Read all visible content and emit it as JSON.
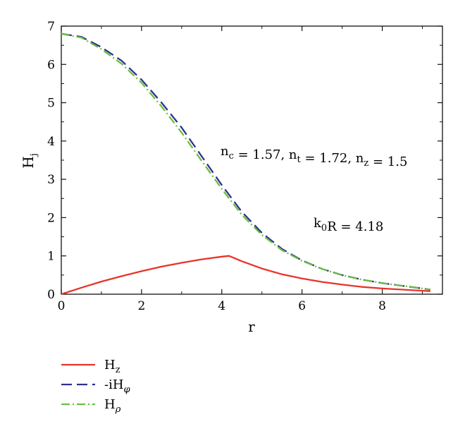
{
  "chart_data": {
    "type": "line",
    "title": "",
    "xlabel": "r",
    "ylabel": {
      "main": "H",
      "sub": "j"
    },
    "xlim": [
      0,
      9.5
    ],
    "ylim": [
      0,
      7
    ],
    "xticks": [
      0,
      2,
      4,
      6,
      8
    ],
    "yticks": [
      0,
      1,
      2,
      3,
      4,
      5,
      6,
      7
    ],
    "grid": false,
    "legend_position": "below-left",
    "annotations": [
      {
        "name": "indices",
        "parts": [
          {
            "text": "n",
            "sub": "c"
          },
          {
            "text": " = 1.57, "
          },
          {
            "text": "n",
            "sub": "t"
          },
          {
            "text": " = 1.72, "
          },
          {
            "text": "n",
            "sub": "z"
          },
          {
            "text": " = 1.5"
          }
        ]
      },
      {
        "name": "k0r",
        "parts": [
          {
            "text": "k",
            "sub": "0"
          },
          {
            "text": "R = 4.18"
          }
        ]
      }
    ],
    "series": [
      {
        "name": "H",
        "name_sub": "z",
        "color": "#e8342a",
        "dash": "solid",
        "x": [
          0,
          0.5,
          1,
          1.5,
          2,
          2.5,
          3,
          3.5,
          4,
          4.18,
          4.5,
          5,
          5.5,
          6,
          6.5,
          7,
          7.5,
          8,
          8.5,
          9,
          9.2
        ],
        "y": [
          0,
          0.17,
          0.33,
          0.47,
          0.6,
          0.72,
          0.82,
          0.91,
          0.98,
          1.0,
          0.86,
          0.67,
          0.52,
          0.41,
          0.32,
          0.25,
          0.19,
          0.15,
          0.12,
          0.09,
          0.08
        ]
      },
      {
        "name": "-iH",
        "name_sub": "φ",
        "color": "#2e3192",
        "dash": "long-dash",
        "x": [
          0,
          0.5,
          1,
          1.5,
          2,
          2.5,
          3,
          3.5,
          4,
          4.5,
          5,
          5.5,
          6,
          6.5,
          7,
          7.5,
          8,
          8.5,
          9,
          9.2
        ],
        "y": [
          6.8,
          6.72,
          6.45,
          6.1,
          5.6,
          5.0,
          4.35,
          3.6,
          2.85,
          2.15,
          1.6,
          1.18,
          0.88,
          0.66,
          0.5,
          0.38,
          0.29,
          0.22,
          0.15,
          0.12
        ]
      },
      {
        "name": "H",
        "name_sub": "ρ",
        "color": "#6abf3e",
        "dash": "dash-dot",
        "x": [
          0,
          0.5,
          1,
          1.5,
          2,
          2.5,
          3,
          3.5,
          4,
          4.5,
          5,
          5.5,
          6,
          6.5,
          7,
          7.5,
          8,
          8.5,
          9,
          9.2
        ],
        "y": [
          6.8,
          6.7,
          6.4,
          6.02,
          5.52,
          4.9,
          4.22,
          3.48,
          2.75,
          2.07,
          1.55,
          1.15,
          0.87,
          0.66,
          0.5,
          0.38,
          0.29,
          0.22,
          0.15,
          0.12
        ]
      }
    ]
  }
}
